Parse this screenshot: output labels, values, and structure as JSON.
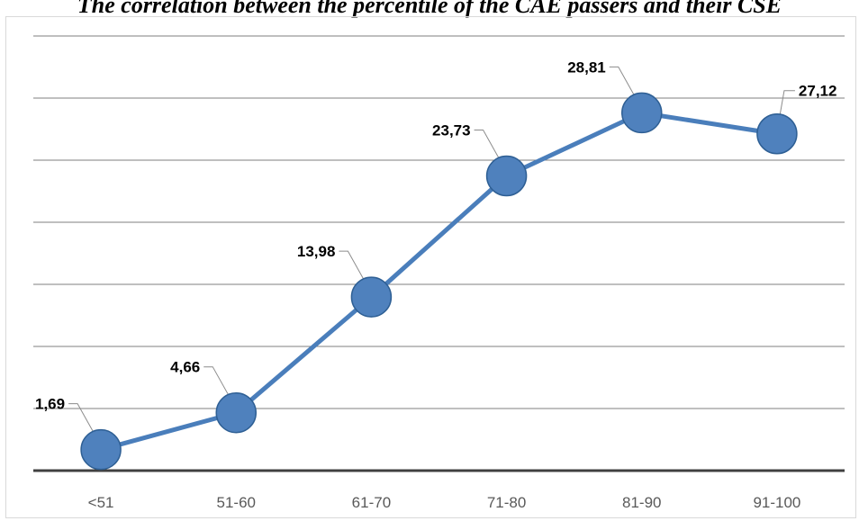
{
  "chart_data": {
    "type": "line",
    "title": "The correlation between the percentile of the CAE passers and their CSE",
    "xlabel": "",
    "ylabel": "",
    "categories": [
      "<51",
      "51-60",
      "61-70",
      "71-80",
      "81-90",
      "91-100"
    ],
    "series": [
      {
        "values": [
          1.69,
          4.66,
          13.98,
          23.73,
          28.81,
          27.12
        ],
        "labels": [
          "1,69",
          "4,66",
          "13,98",
          "23,73",
          "28,81",
          "27,12"
        ]
      }
    ],
    "ylim": [
      0,
      35
    ],
    "grid": true,
    "legend": "none",
    "colors": {
      "line": "#4a7ebb",
      "marker": "#4f81bd",
      "marker_edge": "#2e5f94",
      "grid": "#7f7f7f",
      "axis": "#404040"
    }
  }
}
